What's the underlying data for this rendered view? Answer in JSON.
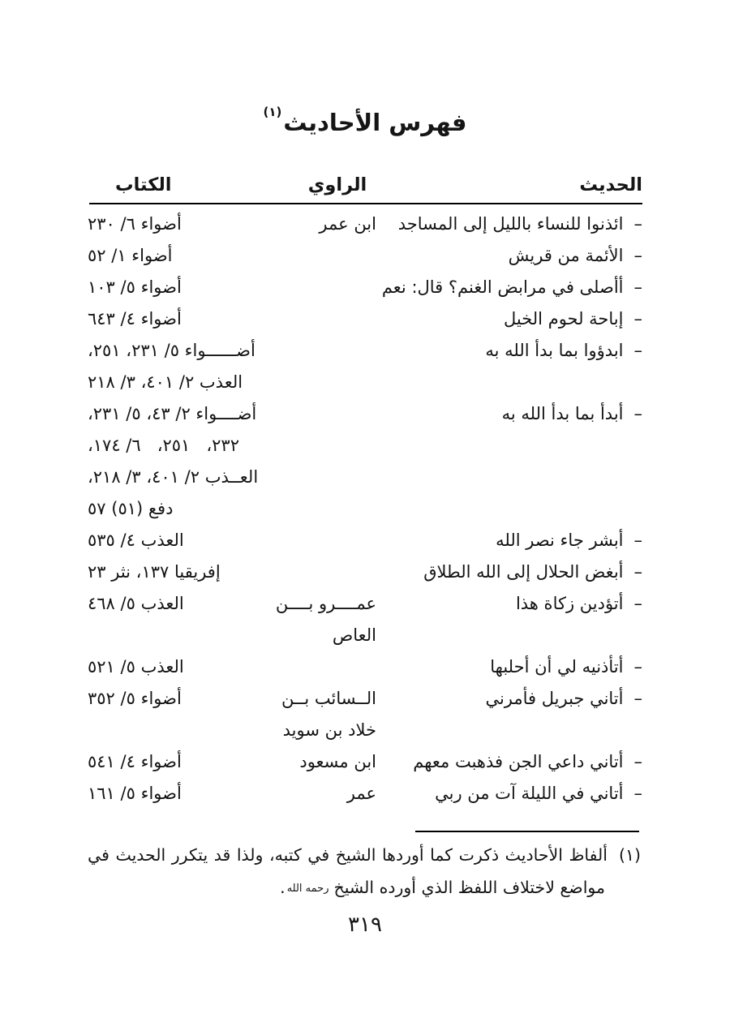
{
  "page": {
    "title": "فهرس الأحاديث",
    "title_footnote_mark": "(١)",
    "page_number": "٣١٩"
  },
  "table": {
    "bullet": "–",
    "headers": {
      "hadith": "الحديث",
      "narrator": "الراوي",
      "book": "الكتاب"
    },
    "rows": [
      {
        "hadith": "ائذنوا للنساء بالليل إلى المساجد",
        "narrator": [
          "ابن عمر"
        ],
        "book": [
          "أضواء ٦/ ٢٣٠"
        ]
      },
      {
        "hadith": "الأئمة من قريش",
        "narrator": [],
        "book": [
          "أضواء ١/ ٥٢"
        ]
      },
      {
        "hadith": "أأصلى في مرابض الغنم؟ قال: نعم",
        "narrator": [],
        "book": [
          "أضواء ٥/ ١٠٣"
        ]
      },
      {
        "hadith": "إباحة لحوم الخيل",
        "narrator": [],
        "book": [
          "أضواء ٤/ ٦٤٣"
        ]
      },
      {
        "hadith": "ابدؤوا بما بدأ الله به",
        "narrator": [],
        "book": [
          "أضــــــواء ٥/ ٢٣١، ٢٥١،",
          "العذب ٢/ ٤٠١، ٣/ ٢١٨"
        ]
      },
      {
        "hadith": "أبدأ بما بدأ الله به",
        "narrator": [],
        "book": [
          "أضــــواء ٢/ ٤٣، ٥/ ٢٣١،",
          "٢٣٢،   ٢٥١،   ٦/ ١٧٤،",
          "العــذب ٢/ ٤٠١، ٣/ ٢١٨،",
          "دفع (٥١) ٥٧"
        ]
      },
      {
        "hadith": "أبشر جاء نصر الله",
        "narrator": [],
        "book": [
          "العذب ٤/ ٥٣٥"
        ]
      },
      {
        "hadith": "أبغض الحلال إلى الله الطلاق",
        "narrator": [],
        "book": [
          "إفريقيا ١٣٧، نثر ٢٣"
        ]
      },
      {
        "hadith": "أتؤدين زكاة هذا",
        "narrator": [
          "عمــــرو بــــن",
          "العاص"
        ],
        "book": [
          "العذب ٥/ ٤٦٨"
        ]
      },
      {
        "hadith": "أتأذنيه لي أن أحلبها",
        "narrator": [],
        "book": [
          "العذب ٥/ ٥٢١"
        ]
      },
      {
        "hadith": "أتاني جبريل فأمرني",
        "narrator": [
          "الــسائب بــن",
          "خلاد بن سويد"
        ],
        "book": [
          "أضواء ٥/ ٣٥٢"
        ]
      },
      {
        "hadith": "أتاني داعي الجن فذهبت معهم",
        "narrator": [
          "ابن مسعود"
        ],
        "book": [
          "أضواء ٤/ ٥٤١"
        ]
      },
      {
        "hadith": "أتاني في الليلة آت من ربي",
        "narrator": [
          "عمر"
        ],
        "book": [
          "أضواء ٥/ ١٦١"
        ]
      }
    ]
  },
  "footnote": {
    "marker": "(١)",
    "line1": "ألفاظ الأحاديث ذكرت كما أوردها الشيخ في كتبه، ولذا قد يتكرر الحديث في",
    "line2": "مواضع لاختلاف اللفظ الذي أورده الشيخ",
    "rahma_symbol": "رحمه الله",
    "line2_end": "."
  }
}
